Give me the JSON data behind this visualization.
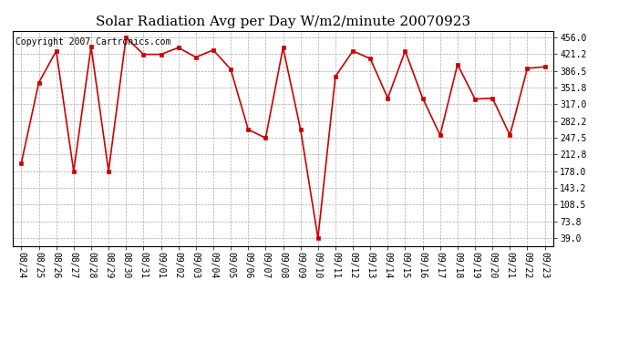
{
  "title": "Solar Radiation Avg per Day W/m2/minute 20070923",
  "copyright": "Copyright 2007 Cartronics.com",
  "dates": [
    "08/24",
    "08/25",
    "08/26",
    "08/27",
    "08/28",
    "08/29",
    "08/30",
    "08/31",
    "09/01",
    "09/02",
    "09/03",
    "09/04",
    "09/05",
    "09/06",
    "09/07",
    "09/08",
    "09/09",
    "09/10",
    "09/11",
    "09/12",
    "09/13",
    "09/14",
    "09/15",
    "09/16",
    "09/17",
    "09/18",
    "09/19",
    "09/20",
    "09/21",
    "09/22",
    "09/23"
  ],
  "values": [
    195,
    362,
    428,
    178,
    437,
    178,
    456,
    421,
    421,
    435,
    415,
    430,
    390,
    265,
    247,
    435,
    265,
    39,
    375,
    428,
    412,
    330,
    428,
    330,
    253,
    400,
    328,
    330,
    253,
    392,
    395
  ],
  "line_color": "#cc0000",
  "marker_size": 3,
  "bg_color": "#ffffff",
  "plot_bg_color": "#ffffff",
  "grid_color": "#aaaaaa",
  "title_fontsize": 11,
  "copyright_fontsize": 7,
  "tick_fontsize": 7,
  "ytick_values": [
    39.0,
    73.8,
    108.5,
    143.2,
    178.0,
    212.8,
    247.5,
    282.2,
    317.0,
    351.8,
    386.5,
    421.2,
    456.0
  ],
  "ylim": [
    22,
    470
  ],
  "xlabel_rotation": 270
}
